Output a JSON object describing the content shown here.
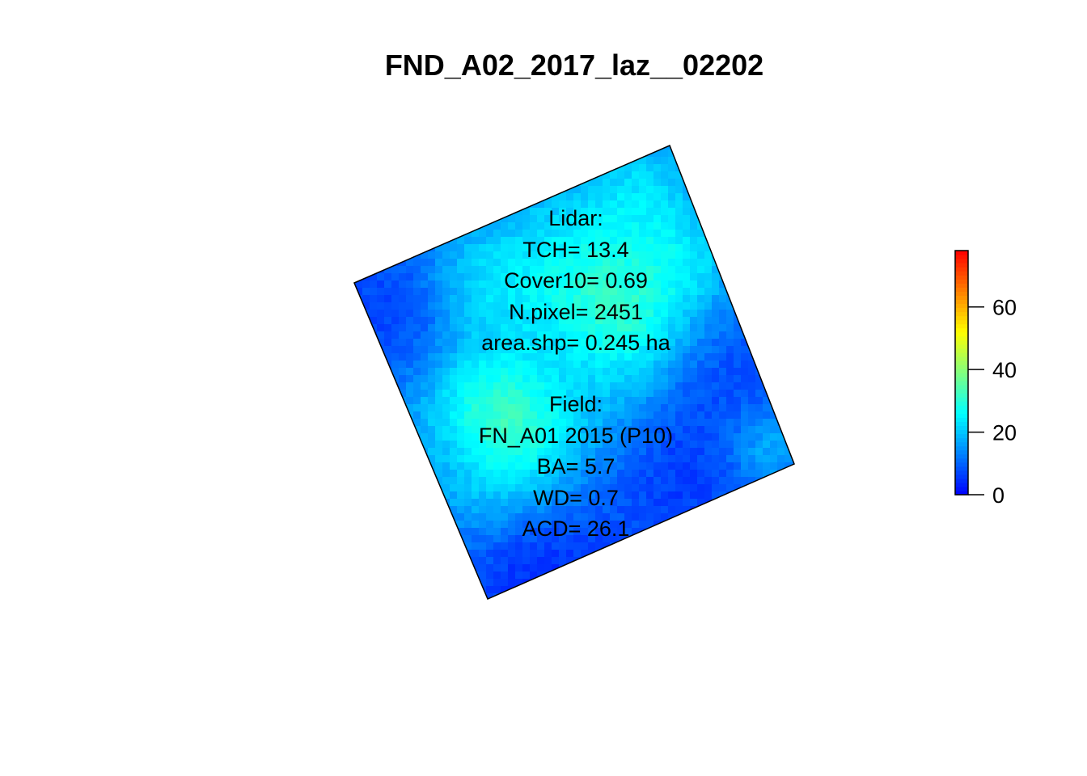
{
  "chart_data": {
    "type": "heatmap",
    "title": "FND_A02_2017_laz__02202",
    "colorbar": {
      "range": [
        0,
        78
      ],
      "ticks": [
        0,
        20,
        40,
        60
      ],
      "colors": [
        "#0000ff",
        "#0080ff",
        "#00ffff",
        "#80ff80",
        "#ffff00",
        "#ff8000",
        "#ff0000"
      ]
    },
    "lidar": {
      "header": "Lidar:",
      "lines": [
        "TCH= 13.4",
        "Cover10= 0.69",
        "N.pixel= 2451",
        "area.shp= 0.245 ha"
      ]
    },
    "field": {
      "header": "Field:",
      "lines": [
        "FN_A01 2015 (P10)",
        "BA= 5.7",
        "WD= 0.7",
        "ACD= 26.1"
      ]
    },
    "canopy_height_mean": 13.4
  }
}
